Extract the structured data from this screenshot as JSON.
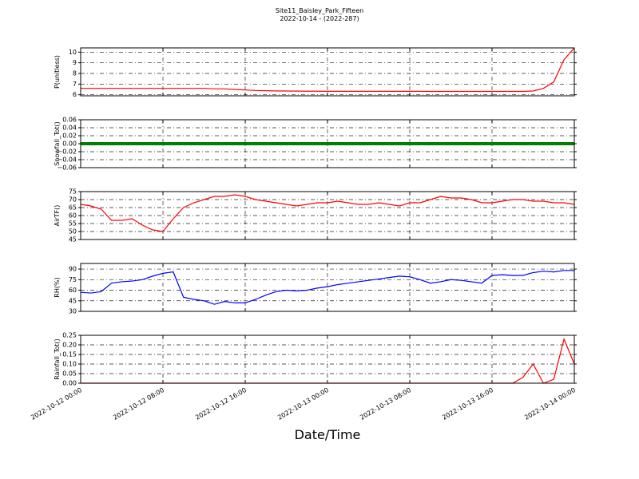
{
  "chart_data": {
    "type": "line",
    "title": "Site11_Baisley_Park_Fifteen",
    "subtitle": "2022-10-14 - (2022-287)",
    "xlabel": "Date/Time",
    "xlim": [
      "2022-10-12 00:00",
      "2022-10-14 00:00"
    ],
    "xticks": [
      "2022-10-12 00:00",
      "2022-10-12 08:00",
      "2022-10-12 16:00",
      "2022-10-13 00:00",
      "2022-10-13 08:00",
      "2022-10-13 16:00",
      "2022-10-14 00:00"
    ],
    "grid": true,
    "x": [
      "2022-10-12 00:00",
      "2022-10-12 01:00",
      "2022-10-12 02:00",
      "2022-10-12 03:00",
      "2022-10-12 04:00",
      "2022-10-12 05:00",
      "2022-10-12 06:00",
      "2022-10-12 07:00",
      "2022-10-12 08:00",
      "2022-10-12 09:00",
      "2022-10-12 10:00",
      "2022-10-12 11:00",
      "2022-10-12 12:00",
      "2022-10-12 13:00",
      "2022-10-12 14:00",
      "2022-10-12 15:00",
      "2022-10-12 16:00",
      "2022-10-12 17:00",
      "2022-10-12 18:00",
      "2022-10-12 19:00",
      "2022-10-12 20:00",
      "2022-10-12 21:00",
      "2022-10-12 22:00",
      "2022-10-12 23:00",
      "2022-10-13 00:00",
      "2022-10-13 01:00",
      "2022-10-13 02:00",
      "2022-10-13 03:00",
      "2022-10-13 04:00",
      "2022-10-13 05:00",
      "2022-10-13 06:00",
      "2022-10-13 07:00",
      "2022-10-13 08:00",
      "2022-10-13 09:00",
      "2022-10-13 10:00",
      "2022-10-13 11:00",
      "2022-10-13 12:00",
      "2022-10-13 13:00",
      "2022-10-13 14:00",
      "2022-10-13 15:00",
      "2022-10-13 16:00",
      "2022-10-13 17:00",
      "2022-10-13 18:00",
      "2022-10-13 19:00",
      "2022-10-13 20:00",
      "2022-10-13 21:00",
      "2022-10-13 22:00",
      "2022-10-13 23:00",
      "2022-10-14 00:00"
    ],
    "panels": [
      {
        "ylabel": "P(unitless)",
        "ylim": [
          5.9,
          10.4
        ],
        "yticks": [
          6,
          7,
          8,
          9,
          10
        ],
        "series": [
          {
            "color": "#ff0000",
            "values": [
              6.6,
              6.6,
              6.6,
              6.6,
              6.6,
              6.6,
              6.6,
              6.6,
              6.6,
              6.6,
              6.6,
              6.6,
              6.6,
              6.55,
              6.55,
              6.5,
              6.45,
              6.4,
              6.38,
              6.36,
              6.35,
              6.34,
              6.33,
              6.33,
              6.32,
              6.32,
              6.32,
              6.32,
              6.32,
              6.32,
              6.32,
              6.32,
              6.32,
              6.32,
              6.31,
              6.31,
              6.31,
              6.31,
              6.31,
              6.31,
              6.31,
              6.31,
              6.31,
              6.31,
              6.35,
              6.6,
              7.2,
              9.3,
              10.4
            ]
          }
        ]
      },
      {
        "ylabel": "Snowfall_Tot()",
        "ylim": [
          -0.06,
          0.06
        ],
        "yticks": [
          {
            "value": -0.06,
            "label": "−0.06"
          },
          {
            "value": -0.04,
            "label": "−0.04"
          },
          {
            "value": -0.02,
            "label": "−0.02"
          },
          {
            "value": 0,
            "label": "0.00"
          },
          0.02,
          0.04,
          0.06
        ],
        "series": [
          {
            "color": "#008000",
            "values": [
              0,
              0,
              0,
              0,
              0,
              0,
              0,
              0,
              0,
              0,
              0,
              0,
              0,
              0,
              0,
              0,
              0,
              0,
              0,
              0,
              0,
              0,
              0,
              0,
              0,
              0,
              0,
              0,
              0,
              0,
              0,
              0,
              0,
              0,
              0,
              0,
              0,
              0,
              0,
              0,
              0,
              0,
              0,
              0,
              0,
              0,
              0,
              0,
              0
            ]
          }
        ]
      },
      {
        "ylabel": "AirTF()",
        "ylim": [
          45,
          75
        ],
        "yticks": [
          45,
          50,
          55,
          60,
          65,
          70,
          75
        ],
        "series": [
          {
            "color": "#ff0000",
            "values": [
              67,
              66,
              64,
              57,
              57,
              58,
              54,
              51,
              50,
              58,
              65,
              68,
              70,
              72,
              72,
              73,
              72,
              70,
              69,
              68,
              67,
              66,
              67,
              68,
              68,
              69,
              68,
              67,
              67,
              68,
              67,
              66,
              68,
              68,
              70,
              72,
              71,
              71,
              70,
              68,
              68,
              69,
              70,
              70,
              69,
              69,
              68,
              68,
              67
            ]
          }
        ]
      },
      {
        "ylabel": "RH(%)",
        "ylim": [
          30,
          98
        ],
        "yticks": [
          30,
          45,
          60,
          75,
          90
        ],
        "series": [
          {
            "color": "#0000ff",
            "values": [
              57,
              56,
              58,
              70,
              72,
              73,
              75,
              80,
              84,
              86,
              50,
              47,
              45,
              40,
              44,
              42,
              42,
              47,
              53,
              58,
              60,
              59,
              60,
              63,
              65,
              68,
              70,
              72,
              74,
              76,
              78,
              80,
              79,
              75,
              70,
              72,
              75,
              74,
              72,
              70,
              81,
              82,
              81,
              81,
              85,
              87,
              86,
              88,
              88
            ]
          }
        ]
      },
      {
        "ylabel": "Rainfall_Tot()",
        "ylim": [
          0,
          0.25
        ],
        "yticks": [
          {
            "value": 0,
            "label": "0.00"
          },
          0.05,
          {
            "value": 0.1,
            "label": "0.10"
          },
          0.15,
          {
            "value": 0.2,
            "label": "0.20"
          },
          0.25
        ],
        "series": [
          {
            "color": "#ff0000",
            "values": [
              0,
              0,
              0,
              0,
              0,
              0,
              0,
              0,
              0,
              0,
              0,
              0,
              0,
              0,
              0,
              0,
              0,
              0,
              0,
              0,
              0,
              0,
              0,
              0,
              0,
              0,
              0,
              0,
              0,
              0,
              0,
              0,
              0,
              0,
              0,
              0,
              0,
              0,
              0,
              0,
              0,
              0,
              0,
              0.03,
              0.1,
              0,
              0.02,
              0.23,
              0.1
            ]
          }
        ]
      }
    ]
  }
}
